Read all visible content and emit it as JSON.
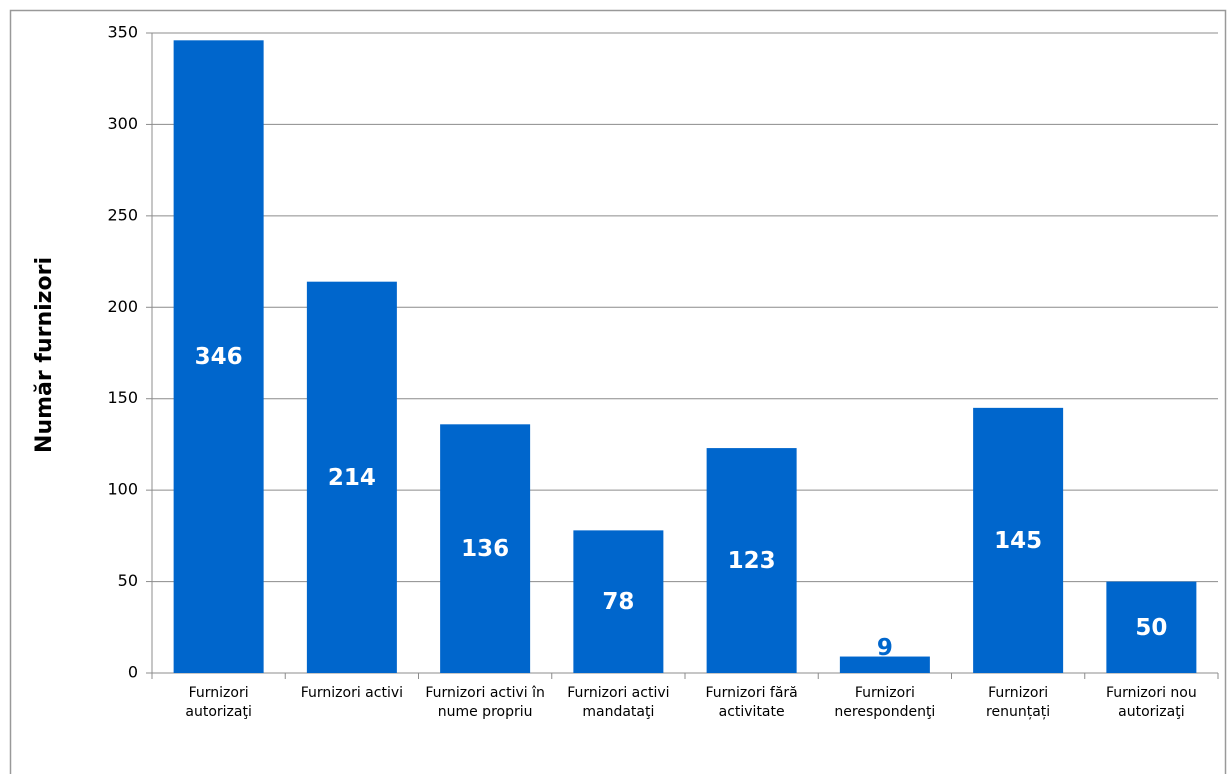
{
  "chart_data": {
    "type": "bar",
    "ylabel": "Număr furnizori",
    "categories": [
      "Furnizori autorizaţi",
      "Furnizori activi",
      "Furnizori activi în nume propriu",
      "Furnizori activi mandataţi",
      "Furnizori fără activitate",
      "Furnizori nerespondenţi",
      "Furnizori renunțați",
      "Furnizori nou autorizaţi"
    ],
    "values": [
      346,
      214,
      136,
      78,
      123,
      9,
      145,
      50
    ],
    "color": "#0066cc",
    "ylim": [
      0,
      350
    ],
    "yticks": [
      0,
      50,
      100,
      150,
      200,
      250,
      300,
      350
    ],
    "grid": true
  }
}
